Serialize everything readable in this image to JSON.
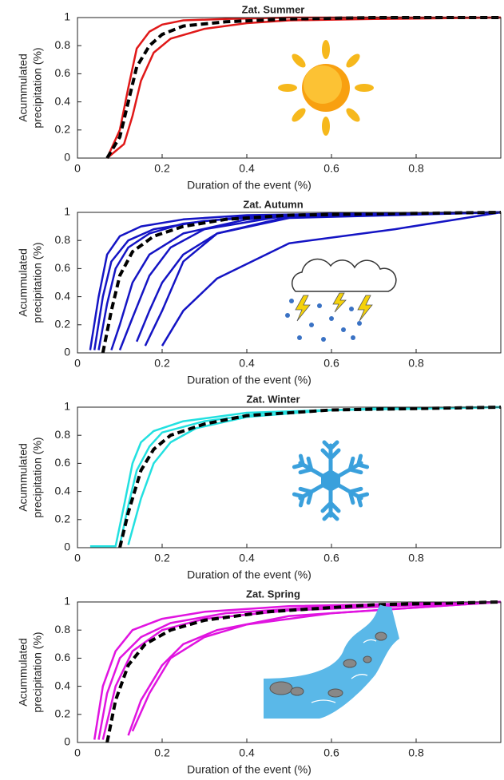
{
  "chart_data": [
    {
      "type": "line",
      "title": "Zat. Summer",
      "xlabel": "Duration of the event (%)",
      "ylabel": [
        "Acummulated",
        "precipitation (%)"
      ],
      "xlim": [
        0,
        1
      ],
      "ylim": [
        0,
        1
      ],
      "xticks": [
        0,
        0.2,
        0.4,
        0.6,
        0.8
      ],
      "yticks": [
        0,
        0.2,
        0.4,
        0.6,
        0.8,
        1
      ],
      "grid": false,
      "series": [
        {
          "color": "#e01818",
          "x": [
            0.07,
            0.1,
            0.12,
            0.14,
            0.17,
            0.2,
            0.25,
            0.35,
            0.5,
            0.7,
            1.0
          ],
          "values": [
            0,
            0.2,
            0.5,
            0.78,
            0.9,
            0.95,
            0.98,
            0.99,
            1,
            1,
            1
          ]
        },
        {
          "color": "#e01818",
          "x": [
            0.07,
            0.11,
            0.13,
            0.15,
            0.18,
            0.22,
            0.3,
            0.4,
            0.5,
            0.7,
            1.0
          ],
          "values": [
            0,
            0.1,
            0.3,
            0.55,
            0.75,
            0.85,
            0.92,
            0.96,
            0.98,
            0.99,
            1
          ]
        },
        {
          "color": "#000000",
          "dashed": true,
          "x": [
            0.07,
            0.1,
            0.12,
            0.14,
            0.17,
            0.2,
            0.25,
            0.35,
            0.5,
            0.7,
            1.0
          ],
          "values": [
            0,
            0.15,
            0.4,
            0.65,
            0.8,
            0.88,
            0.94,
            0.97,
            0.99,
            1,
            1
          ]
        }
      ]
    },
    {
      "type": "line",
      "title": "Zat. Autumn",
      "xlabel": "Duration of the event (%)",
      "ylabel": [
        "Acummulated",
        "precipitation (%)"
      ],
      "xlim": [
        0,
        1
      ],
      "ylim": [
        0,
        1
      ],
      "xticks": [
        0,
        0.2,
        0.4,
        0.6,
        0.8
      ],
      "yticks": [
        0,
        0.2,
        0.4,
        0.6,
        0.8,
        1
      ],
      "grid": false,
      "series": [
        {
          "color": "#1414c4",
          "x": [
            0.03,
            0.05,
            0.07,
            0.1,
            0.15,
            0.25,
            0.4,
            0.6,
            1
          ],
          "values": [
            0.02,
            0.4,
            0.7,
            0.83,
            0.9,
            0.95,
            0.98,
            0.99,
            1
          ]
        },
        {
          "color": "#1414c4",
          "x": [
            0.04,
            0.06,
            0.08,
            0.12,
            0.18,
            0.3,
            0.5,
            1
          ],
          "values": [
            0.02,
            0.4,
            0.65,
            0.8,
            0.88,
            0.94,
            0.98,
            1
          ]
        },
        {
          "color": "#1414c4",
          "x": [
            0.05,
            0.07,
            0.09,
            0.12,
            0.17,
            0.25,
            0.4,
            0.6,
            1
          ],
          "values": [
            0.02,
            0.35,
            0.6,
            0.75,
            0.85,
            0.92,
            0.97,
            0.99,
            1
          ]
        },
        {
          "color": "#1414c4",
          "x": [
            0.08,
            0.1,
            0.13,
            0.17,
            0.25,
            0.4,
            0.6,
            1
          ],
          "values": [
            0.02,
            0.2,
            0.5,
            0.7,
            0.85,
            0.95,
            0.99,
            1
          ]
        },
        {
          "color": "#1414c4",
          "x": [
            0.1,
            0.13,
            0.17,
            0.22,
            0.3,
            0.5,
            1
          ],
          "values": [
            0.02,
            0.25,
            0.55,
            0.75,
            0.88,
            0.98,
            1
          ]
        },
        {
          "color": "#1414c4",
          "x": [
            0.14,
            0.17,
            0.2,
            0.25,
            0.33,
            0.5,
            1
          ],
          "values": [
            0.08,
            0.3,
            0.5,
            0.7,
            0.85,
            0.97,
            1
          ]
        },
        {
          "color": "#1414c4",
          "x": [
            0.16,
            0.2,
            0.25,
            0.33,
            0.5,
            1
          ],
          "values": [
            0.05,
            0.3,
            0.65,
            0.85,
            0.96,
            1
          ]
        },
        {
          "color": "#1414c4",
          "x": [
            0.2,
            0.25,
            0.33,
            0.5,
            0.75,
            1
          ],
          "values": [
            0.05,
            0.3,
            0.53,
            0.78,
            0.88,
            1
          ]
        },
        {
          "color": "#000000",
          "dashed": true,
          "x": [
            0.06,
            0.08,
            0.1,
            0.13,
            0.18,
            0.25,
            0.35,
            0.5,
            0.7,
            1
          ],
          "values": [
            0,
            0.3,
            0.55,
            0.72,
            0.83,
            0.9,
            0.95,
            0.98,
            0.99,
            1
          ]
        }
      ]
    },
    {
      "type": "line",
      "title": "Zat. Winter",
      "xlabel": "Duration of the event (%)",
      "ylabel": [
        "Acummulated",
        "precipitation (%)"
      ],
      "xlim": [
        0,
        1
      ],
      "ylim": [
        0,
        1
      ],
      "xticks": [
        0,
        0.2,
        0.4,
        0.6,
        0.8
      ],
      "yticks": [
        0,
        0.2,
        0.4,
        0.6,
        0.8,
        1
      ],
      "grid": false,
      "series": [
        {
          "color": "#22e0e0",
          "x": [
            0.03,
            0.09,
            0.11,
            0.13,
            0.15,
            0.18,
            0.25,
            0.4,
            0.6,
            1
          ],
          "values": [
            0.01,
            0.01,
            0.3,
            0.6,
            0.75,
            0.83,
            0.9,
            0.96,
            0.98,
            1
          ]
        },
        {
          "color": "#22e0e0",
          "x": [
            0.1,
            0.12,
            0.14,
            0.17,
            0.2,
            0.3,
            0.45,
            0.7,
            1
          ],
          "values": [
            0.02,
            0.3,
            0.55,
            0.72,
            0.82,
            0.9,
            0.96,
            0.99,
            1
          ]
        },
        {
          "color": "#22e0e0",
          "x": [
            0.12,
            0.15,
            0.18,
            0.22,
            0.28,
            0.4,
            0.6,
            1
          ],
          "values": [
            0.02,
            0.35,
            0.6,
            0.75,
            0.85,
            0.93,
            0.98,
            1
          ]
        },
        {
          "color": "#000000",
          "dashed": true,
          "x": [
            0.1,
            0.12,
            0.15,
            0.18,
            0.22,
            0.3,
            0.4,
            0.6,
            1
          ],
          "values": [
            0,
            0.25,
            0.55,
            0.7,
            0.8,
            0.88,
            0.94,
            0.98,
            1
          ]
        }
      ]
    },
    {
      "type": "line",
      "title": "Zat. Spring",
      "xlabel": "Duration of the event (%)",
      "ylabel": [
        "Acummulated",
        "precipitation (%)"
      ],
      "xlim": [
        0,
        1
      ],
      "ylim": [
        0,
        1
      ],
      "xticks": [
        0,
        0.2,
        0.4,
        0.6,
        0.8
      ],
      "yticks": [
        0,
        0.2,
        0.4,
        0.6,
        0.8,
        1
      ],
      "grid": false,
      "series": [
        {
          "color": "#e014e0",
          "x": [
            0.04,
            0.06,
            0.09,
            0.13,
            0.2,
            0.3,
            0.5,
            0.8,
            1
          ],
          "values": [
            0.02,
            0.4,
            0.65,
            0.8,
            0.88,
            0.93,
            0.97,
            0.99,
            1
          ]
        },
        {
          "color": "#e014e0",
          "x": [
            0.05,
            0.07,
            0.1,
            0.15,
            0.22,
            0.35,
            0.55,
            1
          ],
          "values": [
            0.02,
            0.35,
            0.6,
            0.75,
            0.85,
            0.92,
            0.96,
            1
          ]
        },
        {
          "color": "#e014e0",
          "x": [
            0.06,
            0.09,
            0.13,
            0.2,
            0.3,
            0.5,
            1
          ],
          "values": [
            0.02,
            0.4,
            0.65,
            0.8,
            0.88,
            0.94,
            1
          ]
        },
        {
          "color": "#e014e0",
          "x": [
            0.12,
            0.15,
            0.2,
            0.25,
            0.33,
            0.5,
            0.8,
            1
          ],
          "values": [
            0.05,
            0.3,
            0.55,
            0.7,
            0.8,
            0.9,
            0.96,
            1
          ]
        },
        {
          "color": "#e014e0",
          "x": [
            0.13,
            0.17,
            0.22,
            0.3,
            0.4,
            0.6,
            1
          ],
          "values": [
            0.08,
            0.35,
            0.6,
            0.75,
            0.84,
            0.92,
            1
          ]
        },
        {
          "color": "#000000",
          "dashed": true,
          "x": [
            0.07,
            0.09,
            0.12,
            0.16,
            0.22,
            0.3,
            0.45,
            0.7,
            1
          ],
          "values": [
            0,
            0.3,
            0.55,
            0.7,
            0.8,
            0.87,
            0.93,
            0.98,
            1
          ]
        }
      ]
    }
  ]
}
